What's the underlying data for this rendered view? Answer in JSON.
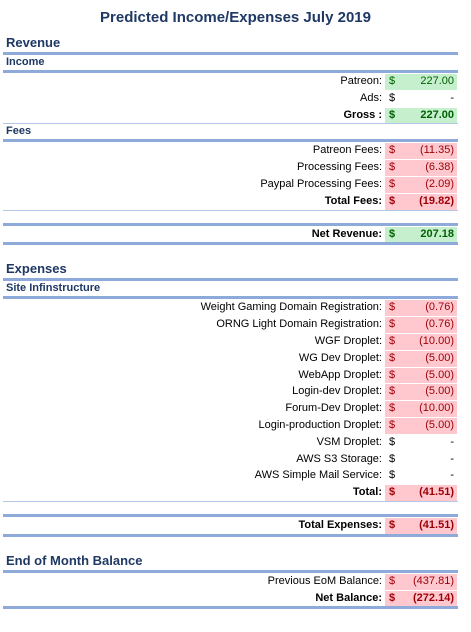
{
  "title": "Predicted Income/Expenses July 2019",
  "sections": [
    {
      "heading": "Revenue",
      "groups": [
        {
          "heading": "Income",
          "rows": [
            {
              "label": "Patreon:",
              "currency": "$",
              "value": "227.00",
              "highlight": "green"
            },
            {
              "label": "Ads:",
              "currency": "$",
              "value": "-"
            },
            {
              "label": "Gross :",
              "currency": "$",
              "value": "227.00",
              "highlight": "green",
              "bold": true
            }
          ]
        },
        {
          "heading": "Fees",
          "rows": [
            {
              "label": "Patreon Fees:",
              "currency": "$",
              "value": "(11.35)",
              "highlight": "pink"
            },
            {
              "label": "Processing Fees:",
              "currency": "$",
              "value": "(6.38)",
              "highlight": "pink"
            },
            {
              "label": "Paypal Processing Fees:",
              "currency": "$",
              "value": "(2.09)",
              "highlight": "pink"
            },
            {
              "label": "Total Fees:",
              "currency": "$",
              "value": "(19.82)",
              "highlight": "pink",
              "bold": true
            }
          ]
        },
        {
          "summary": true,
          "rows": [
            {
              "label": "Net Revenue:",
              "currency": "$",
              "value": "207.18",
              "highlight": "green",
              "bold": true
            }
          ]
        }
      ]
    },
    {
      "heading": "Expenses",
      "groups": [
        {
          "heading": "Site Infinstructure",
          "rows": [
            {
              "label": "Weight Gaming Domain Registration:",
              "currency": "$",
              "value": "(0.76)",
              "highlight": "pink"
            },
            {
              "label": "ORNG Light Domain Registration:",
              "currency": "$",
              "value": "(0.76)",
              "highlight": "pink"
            },
            {
              "label": "WGF Droplet:",
              "currency": "$",
              "value": "(10.00)",
              "highlight": "pink"
            },
            {
              "label": "WG Dev Droplet:",
              "currency": "$",
              "value": "(5.00)",
              "highlight": "pink"
            },
            {
              "label": "WebApp Droplet:",
              "currency": "$",
              "value": "(5.00)",
              "highlight": "pink"
            },
            {
              "label": "Login-dev Droplet:",
              "currency": "$",
              "value": "(5.00)",
              "highlight": "pink"
            },
            {
              "label": "Forum-Dev Droplet:",
              "currency": "$",
              "value": "(10.00)",
              "highlight": "pink"
            },
            {
              "label": "Login-production Droplet:",
              "currency": "$",
              "value": "(5.00)",
              "highlight": "pink"
            },
            {
              "label": "VSM Droplet:",
              "currency": "$",
              "value": "-"
            },
            {
              "label": "AWS S3 Storage:",
              "currency": "$",
              "value": "-"
            },
            {
              "label": "AWS Simple Mail Service:",
              "currency": "$",
              "value": "-"
            },
            {
              "label": "Total:",
              "currency": "$",
              "value": "(41.51)",
              "highlight": "pink",
              "bold": true
            }
          ]
        },
        {
          "summary": true,
          "rows": [
            {
              "label": "Total Expenses:",
              "currency": "$",
              "value": "(41.51)",
              "highlight": "pink",
              "bold": true
            }
          ]
        }
      ]
    },
    {
      "heading": "End of Month Balance",
      "groups": [
        {
          "rows": [
            {
              "label": "Previous EoM Balance:",
              "currency": "$",
              "value": "(437.81)",
              "highlight": "pink"
            },
            {
              "label": "Net Balance:",
              "currency": "$",
              "value": "(272.14)",
              "highlight": "pink",
              "bold": true
            }
          ]
        }
      ]
    }
  ]
}
